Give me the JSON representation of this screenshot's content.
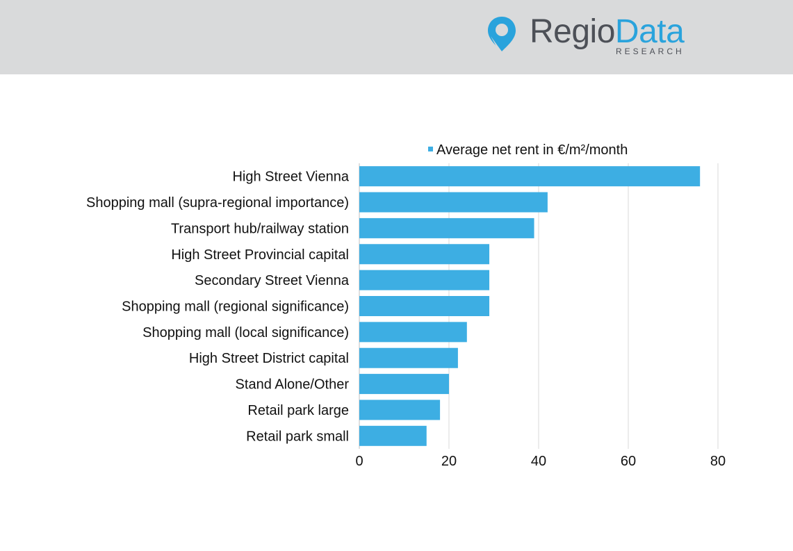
{
  "brand": {
    "name_part1": "Regio",
    "name_part2": "Data",
    "subtitle": "RESEARCH",
    "colors": {
      "primary": "#2aa3dc",
      "dark": "#4d5057",
      "header_bg": "#d9dadb"
    }
  },
  "chart_data": {
    "type": "bar",
    "orientation": "horizontal",
    "categories": [
      "High Street Vienna",
      "Shopping mall (supra-regional importance)",
      "Transport hub/railway station",
      "High Street Provincial capital",
      "Secondary Street Vienna",
      "Shopping mall (regional significance)",
      "Shopping mall (local significance)",
      "High Street District capital",
      "Stand Alone/Other",
      "Retail park large",
      "Retail park small"
    ],
    "series": [
      {
        "name": "Average net rent in €/m²/month",
        "values": [
          76,
          42,
          39,
          29,
          29,
          29,
          24,
          22,
          20,
          18,
          15
        ],
        "color": "#3daee3"
      }
    ],
    "xlim": [
      0,
      80
    ],
    "xticks": [
      "0",
      "20",
      "40",
      "60",
      "80"
    ],
    "grid": true,
    "legend_position": "top"
  }
}
